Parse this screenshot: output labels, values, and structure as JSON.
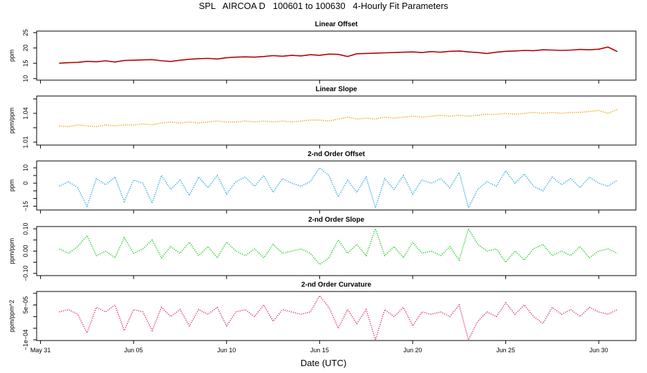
{
  "title": "SPL   AIRCOA D   100601 to 100630   4-Hourly Fit Parameters",
  "xlabel": "Date (UTC)",
  "x_ticks": [
    {
      "date": "2010-05-31",
      "label": "May 31"
    },
    {
      "date": "2010-06-05",
      "label": "Jun 05"
    },
    {
      "date": "2010-06-10",
      "label": "Jun 10"
    },
    {
      "date": "2010-06-15",
      "label": "Jun 15"
    },
    {
      "date": "2010-06-20",
      "label": "Jun 20"
    },
    {
      "date": "2010-06-25",
      "label": "Jun 25"
    },
    {
      "date": "2010-06-30",
      "label": "Jun 30"
    }
  ],
  "chart_data": [
    {
      "type": "line",
      "title": "Linear Offset",
      "ylabel": "ppm",
      "color": "#b00000",
      "style": "solid",
      "xlim": [
        "2010-05-30T19:00",
        "2010-07-02T00:00"
      ],
      "ylim": [
        9.5,
        25.5
      ],
      "yticks": [
        10,
        15,
        20,
        25
      ],
      "ytick_labels": [
        "10",
        "15",
        "20",
        "25"
      ],
      "x": [
        "2010-06-01T00:00",
        "2010-06-01T12:00",
        "2010-06-02T00:00",
        "2010-06-02T12:00",
        "2010-06-03T00:00",
        "2010-06-03T12:00",
        "2010-06-04T00:00",
        "2010-06-04T12:00",
        "2010-06-05T00:00",
        "2010-06-05T12:00",
        "2010-06-06T00:00",
        "2010-06-06T12:00",
        "2010-06-07T00:00",
        "2010-06-07T12:00",
        "2010-06-08T00:00",
        "2010-06-08T12:00",
        "2010-06-09T00:00",
        "2010-06-09T12:00",
        "2010-06-10T00:00",
        "2010-06-10T12:00",
        "2010-06-11T00:00",
        "2010-06-11T12:00",
        "2010-06-12T00:00",
        "2010-06-12T12:00",
        "2010-06-13T00:00",
        "2010-06-13T12:00",
        "2010-06-14T00:00",
        "2010-06-14T12:00",
        "2010-06-15T00:00",
        "2010-06-15T12:00",
        "2010-06-16T00:00",
        "2010-06-16T12:00",
        "2010-06-17T00:00",
        "2010-06-17T12:00",
        "2010-06-18T00:00",
        "2010-06-18T12:00",
        "2010-06-19T00:00",
        "2010-06-19T12:00",
        "2010-06-20T00:00",
        "2010-06-20T12:00",
        "2010-06-21T00:00",
        "2010-06-21T12:00",
        "2010-06-22T00:00",
        "2010-06-22T12:00",
        "2010-06-23T00:00",
        "2010-06-23T12:00",
        "2010-06-24T00:00",
        "2010-06-24T12:00",
        "2010-06-25T00:00",
        "2010-06-25T12:00",
        "2010-06-26T00:00",
        "2010-06-26T12:00",
        "2010-06-27T00:00",
        "2010-06-27T12:00",
        "2010-06-28T00:00",
        "2010-06-28T12:00",
        "2010-06-29T00:00",
        "2010-06-29T12:00",
        "2010-06-30T00:00",
        "2010-06-30T12:00",
        "2010-07-01T00:00"
      ],
      "y": [
        15.0,
        15.2,
        15.3,
        15.6,
        15.5,
        15.8,
        15.4,
        15.9,
        16.0,
        16.1,
        16.2,
        15.8,
        15.6,
        16.0,
        16.3,
        16.5,
        16.6,
        16.4,
        16.8,
        17.0,
        17.1,
        17.0,
        17.2,
        17.5,
        17.3,
        17.6,
        17.4,
        17.8,
        17.6,
        18.0,
        17.9,
        17.2,
        18.1,
        18.2,
        18.3,
        18.4,
        18.5,
        18.6,
        18.7,
        18.5,
        18.8,
        18.6,
        18.9,
        19.0,
        18.7,
        18.5,
        18.2,
        18.6,
        18.9,
        19.0,
        19.2,
        19.1,
        19.4,
        19.3,
        19.2,
        19.3,
        19.5,
        19.4,
        19.6,
        20.3,
        18.8
      ]
    },
    {
      "type": "line",
      "title": "Linear Slope",
      "ylabel": "ppm/ppm",
      "color": "#e8a000",
      "style": "dotted",
      "xlim": [
        "2010-05-30T19:00",
        "2010-07-02T00:00"
      ],
      "ylim": [
        1.007,
        1.058
      ],
      "yticks": [
        1.01,
        1.025,
        1.04,
        1.055
      ],
      "ytick_labels": [
        "1.01",
        "",
        "1.04",
        ""
      ],
      "x": [
        "2010-06-01T00:00",
        "2010-06-01T12:00",
        "2010-06-02T00:00",
        "2010-06-02T12:00",
        "2010-06-03T00:00",
        "2010-06-03T12:00",
        "2010-06-04T00:00",
        "2010-06-04T12:00",
        "2010-06-05T00:00",
        "2010-06-05T12:00",
        "2010-06-06T00:00",
        "2010-06-06T12:00",
        "2010-06-07T00:00",
        "2010-06-07T12:00",
        "2010-06-08T00:00",
        "2010-06-08T12:00",
        "2010-06-09T00:00",
        "2010-06-09T12:00",
        "2010-06-10T00:00",
        "2010-06-10T12:00",
        "2010-06-11T00:00",
        "2010-06-11T12:00",
        "2010-06-12T00:00",
        "2010-06-12T12:00",
        "2010-06-13T00:00",
        "2010-06-13T12:00",
        "2010-06-14T00:00",
        "2010-06-14T12:00",
        "2010-06-15T00:00",
        "2010-06-15T12:00",
        "2010-06-16T00:00",
        "2010-06-16T12:00",
        "2010-06-17T00:00",
        "2010-06-17T12:00",
        "2010-06-18T00:00",
        "2010-06-18T12:00",
        "2010-06-19T00:00",
        "2010-06-19T12:00",
        "2010-06-20T00:00",
        "2010-06-20T12:00",
        "2010-06-21T00:00",
        "2010-06-21T12:00",
        "2010-06-22T00:00",
        "2010-06-22T12:00",
        "2010-06-23T00:00",
        "2010-06-23T12:00",
        "2010-06-24T00:00",
        "2010-06-24T12:00",
        "2010-06-25T00:00",
        "2010-06-25T12:00",
        "2010-06-26T00:00",
        "2010-06-26T12:00",
        "2010-06-27T00:00",
        "2010-06-27T12:00",
        "2010-06-28T00:00",
        "2010-06-28T12:00",
        "2010-06-29T00:00",
        "2010-06-29T12:00",
        "2010-06-30T00:00",
        "2010-06-30T12:00",
        "2010-07-01T00:00"
      ],
      "y": [
        1.027,
        1.026,
        1.028,
        1.027,
        1.026,
        1.028,
        1.027,
        1.028,
        1.028,
        1.029,
        1.028,
        1.03,
        1.031,
        1.03,
        1.031,
        1.03,
        1.031,
        1.032,
        1.031,
        1.031,
        1.032,
        1.031,
        1.032,
        1.031,
        1.032,
        1.031,
        1.032,
        1.033,
        1.033,
        1.032,
        1.034,
        1.036,
        1.034,
        1.035,
        1.034,
        1.036,
        1.035,
        1.036,
        1.037,
        1.036,
        1.037,
        1.038,
        1.037,
        1.038,
        1.037,
        1.038,
        1.039,
        1.039,
        1.04,
        1.039,
        1.04,
        1.041,
        1.04,
        1.041,
        1.04,
        1.041,
        1.041,
        1.042,
        1.043,
        1.04,
        1.044
      ]
    },
    {
      "type": "line",
      "title": "2-nd Order Offset",
      "ylabel": "ppm",
      "color": "#2aa7d9",
      "style": "dotted",
      "xlim": [
        "2010-05-30T19:00",
        "2010-07-02T00:00"
      ],
      "ylim": [
        -17.5,
        14.5
      ],
      "yticks": [
        -15,
        -10,
        -5,
        0,
        5,
        10
      ],
      "ytick_labels": [
        "−15",
        "",
        "",
        "0",
        "",
        "10"
      ],
      "x": [
        "2010-06-01T00:00",
        "2010-06-01T12:00",
        "2010-06-02T00:00",
        "2010-06-02T12:00",
        "2010-06-03T00:00",
        "2010-06-03T12:00",
        "2010-06-04T00:00",
        "2010-06-04T12:00",
        "2010-06-05T00:00",
        "2010-06-05T12:00",
        "2010-06-06T00:00",
        "2010-06-06T12:00",
        "2010-06-07T00:00",
        "2010-06-07T12:00",
        "2010-06-08T00:00",
        "2010-06-08T12:00",
        "2010-06-09T00:00",
        "2010-06-09T12:00",
        "2010-06-10T00:00",
        "2010-06-10T12:00",
        "2010-06-11T00:00",
        "2010-06-11T12:00",
        "2010-06-12T00:00",
        "2010-06-12T12:00",
        "2010-06-13T00:00",
        "2010-06-13T12:00",
        "2010-06-14T00:00",
        "2010-06-14T12:00",
        "2010-06-15T00:00",
        "2010-06-15T12:00",
        "2010-06-16T00:00",
        "2010-06-16T12:00",
        "2010-06-17T00:00",
        "2010-06-17T12:00",
        "2010-06-18T00:00",
        "2010-06-18T12:00",
        "2010-06-19T00:00",
        "2010-06-19T12:00",
        "2010-06-20T00:00",
        "2010-06-20T12:00",
        "2010-06-21T00:00",
        "2010-06-21T12:00",
        "2010-06-22T00:00",
        "2010-06-22T12:00",
        "2010-06-23T00:00",
        "2010-06-23T12:00",
        "2010-06-24T00:00",
        "2010-06-24T12:00",
        "2010-06-25T00:00",
        "2010-06-25T12:00",
        "2010-06-26T00:00",
        "2010-06-26T12:00",
        "2010-06-27T00:00",
        "2010-06-27T12:00",
        "2010-06-28T00:00",
        "2010-06-28T12:00",
        "2010-06-29T00:00",
        "2010-06-29T12:00",
        "2010-06-30T00:00",
        "2010-06-30T12:00",
        "2010-07-01T00:00"
      ],
      "y": [
        -2,
        1,
        -3,
        -15,
        3,
        -1,
        4,
        -12,
        2,
        0,
        -13,
        5,
        -4,
        2,
        -8,
        4,
        -3,
        5,
        -7,
        1,
        4,
        -2,
        5,
        -6,
        3,
        0,
        -2,
        1,
        10,
        5,
        -9,
        2,
        -6,
        4,
        -16,
        3,
        -4,
        5,
        -7,
        2,
        0,
        3,
        -3,
        7,
        -16,
        -4,
        1,
        -2,
        8,
        0,
        6,
        -2,
        -5,
        4,
        -1,
        3,
        -3,
        4,
        0,
        -2,
        2
      ]
    },
    {
      "type": "line",
      "title": "2-nd Order Slope",
      "ylabel": "ppm/ppm",
      "color": "#22c822",
      "style": "dotted",
      "xlim": [
        "2010-05-30T19:00",
        "2010-07-02T00:00"
      ],
      "ylim": [
        -0.11,
        0.11
      ],
      "yticks": [
        -0.1,
        -0.05,
        0.0,
        0.05,
        0.1
      ],
      "ytick_labels": [
        "−0.10",
        "",
        "0.00",
        "",
        "0.10"
      ],
      "x": [
        "2010-06-01T00:00",
        "2010-06-01T12:00",
        "2010-06-02T00:00",
        "2010-06-02T12:00",
        "2010-06-03T00:00",
        "2010-06-03T12:00",
        "2010-06-04T00:00",
        "2010-06-04T12:00",
        "2010-06-05T00:00",
        "2010-06-05T12:00",
        "2010-06-06T00:00",
        "2010-06-06T12:00",
        "2010-06-07T00:00",
        "2010-06-07T12:00",
        "2010-06-08T00:00",
        "2010-06-08T12:00",
        "2010-06-09T00:00",
        "2010-06-09T12:00",
        "2010-06-10T00:00",
        "2010-06-10T12:00",
        "2010-06-11T00:00",
        "2010-06-11T12:00",
        "2010-06-12T00:00",
        "2010-06-12T12:00",
        "2010-06-13T00:00",
        "2010-06-13T12:00",
        "2010-06-14T00:00",
        "2010-06-14T12:00",
        "2010-06-15T00:00",
        "2010-06-15T12:00",
        "2010-06-16T00:00",
        "2010-06-16T12:00",
        "2010-06-17T00:00",
        "2010-06-17T12:00",
        "2010-06-18T00:00",
        "2010-06-18T12:00",
        "2010-06-19T00:00",
        "2010-06-19T12:00",
        "2010-06-20T00:00",
        "2010-06-20T12:00",
        "2010-06-21T00:00",
        "2010-06-21T12:00",
        "2010-06-22T00:00",
        "2010-06-22T12:00",
        "2010-06-23T00:00",
        "2010-06-23T12:00",
        "2010-06-24T00:00",
        "2010-06-24T12:00",
        "2010-06-25T00:00",
        "2010-06-25T12:00",
        "2010-06-26T00:00",
        "2010-06-26T12:00",
        "2010-06-27T00:00",
        "2010-06-27T12:00",
        "2010-06-28T00:00",
        "2010-06-28T12:00",
        "2010-06-29T00:00",
        "2010-06-29T12:00",
        "2010-06-30T00:00",
        "2010-06-30T12:00",
        "2010-07-01T00:00"
      ],
      "y": [
        0.01,
        -0.01,
        0.02,
        0.07,
        -0.02,
        0.0,
        -0.03,
        0.06,
        -0.01,
        0.01,
        0.05,
        -0.03,
        0.02,
        -0.01,
        0.04,
        -0.02,
        0.02,
        -0.03,
        0.04,
        0.0,
        -0.02,
        0.01,
        -0.03,
        0.03,
        -0.01,
        0.0,
        0.01,
        -0.01,
        -0.06,
        -0.03,
        0.05,
        -0.01,
        0.03,
        -0.02,
        0.1,
        -0.02,
        0.02,
        -0.03,
        0.04,
        -0.01,
        0.0,
        -0.02,
        0.02,
        -0.04,
        0.1,
        0.03,
        0.0,
        0.01,
        -0.05,
        0.0,
        -0.04,
        0.01,
        0.03,
        -0.02,
        0.0,
        -0.02,
        0.02,
        -0.03,
        0.0,
        0.01,
        -0.01
      ]
    },
    {
      "type": "line",
      "title": "2-nd Order Curvature",
      "ylabel": "ppm/ppm^2",
      "color": "#e0306a",
      "style": "dotted",
      "xlim": [
        "2010-05-30T19:00",
        "2010-07-02T00:00"
      ],
      "ylim": [
        -0.000103,
        0.000108
      ],
      "yticks": [
        -0.0001,
        -5e-05,
        0,
        5e-05,
        0.0001
      ],
      "ytick_labels": [
        "−1e−04",
        "",
        "",
        "5e−05",
        ""
      ],
      "x": [
        "2010-06-01T00:00",
        "2010-06-01T12:00",
        "2010-06-02T00:00",
        "2010-06-02T12:00",
        "2010-06-03T00:00",
        "2010-06-03T12:00",
        "2010-06-04T00:00",
        "2010-06-04T12:00",
        "2010-06-05T00:00",
        "2010-06-05T12:00",
        "2010-06-06T00:00",
        "2010-06-06T12:00",
        "2010-06-07T00:00",
        "2010-06-07T12:00",
        "2010-06-08T00:00",
        "2010-06-08T12:00",
        "2010-06-09T00:00",
        "2010-06-09T12:00",
        "2010-06-10T00:00",
        "2010-06-10T12:00",
        "2010-06-11T00:00",
        "2010-06-11T12:00",
        "2010-06-12T00:00",
        "2010-06-12T12:00",
        "2010-06-13T00:00",
        "2010-06-13T12:00",
        "2010-06-14T00:00",
        "2010-06-14T12:00",
        "2010-06-15T00:00",
        "2010-06-15T12:00",
        "2010-06-16T00:00",
        "2010-06-16T12:00",
        "2010-06-17T00:00",
        "2010-06-17T12:00",
        "2010-06-18T00:00",
        "2010-06-18T12:00",
        "2010-06-19T00:00",
        "2010-06-19T12:00",
        "2010-06-20T00:00",
        "2010-06-20T12:00",
        "2010-06-21T00:00",
        "2010-06-21T12:00",
        "2010-06-22T00:00",
        "2010-06-22T12:00",
        "2010-06-23T00:00",
        "2010-06-23T12:00",
        "2010-06-24T00:00",
        "2010-06-24T12:00",
        "2010-06-25T00:00",
        "2010-06-25T12:00",
        "2010-06-26T00:00",
        "2010-06-26T12:00",
        "2010-06-27T00:00",
        "2010-06-27T12:00",
        "2010-06-28T00:00",
        "2010-06-28T12:00",
        "2010-06-29T00:00",
        "2010-06-29T12:00",
        "2010-06-30T00:00",
        "2010-06-30T12:00",
        "2010-07-01T00:00"
      ],
      "y": [
        2e-05,
        3e-05,
        1e-05,
        -7e-05,
        4e-05,
        2e-05,
        5e-05,
        -6e-05,
        3e-05,
        2e-05,
        -6e-05,
        4e-05,
        0,
        3e-05,
        -4e-05,
        3e-05,
        1e-05,
        4e-05,
        -4e-05,
        2e-05,
        3e-05,
        0,
        5e-05,
        -2e-05,
        3e-05,
        2e-05,
        1e-05,
        2e-05,
        9e-05,
        4e-05,
        -5e-05,
        3e-05,
        -3e-05,
        3e-05,
        -0.0001,
        3e-05,
        0,
        4e-05,
        -4e-05,
        2e-05,
        1e-05,
        2e-05,
        0,
        5e-05,
        -0.0001,
        -2e-05,
        2e-05,
        0,
        6e-05,
        1e-05,
        5e-05,
        0,
        -3e-05,
        4e-05,
        1e-05,
        3e-05,
        0,
        4e-05,
        2e-05,
        1e-05,
        3e-05
      ]
    }
  ]
}
